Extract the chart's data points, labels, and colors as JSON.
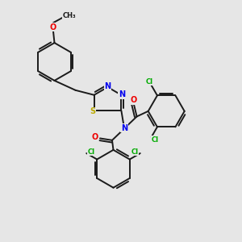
{
  "background_color": "#e6e6e6",
  "bond_color": "#1a1a1a",
  "atom_colors": {
    "N": "#0000ee",
    "O": "#ee0000",
    "S": "#bbaa00",
    "Cl": "#00aa00",
    "C": "#1a1a1a"
  },
  "lw": 1.4,
  "fs": 7.0,
  "fs_small": 6.0
}
